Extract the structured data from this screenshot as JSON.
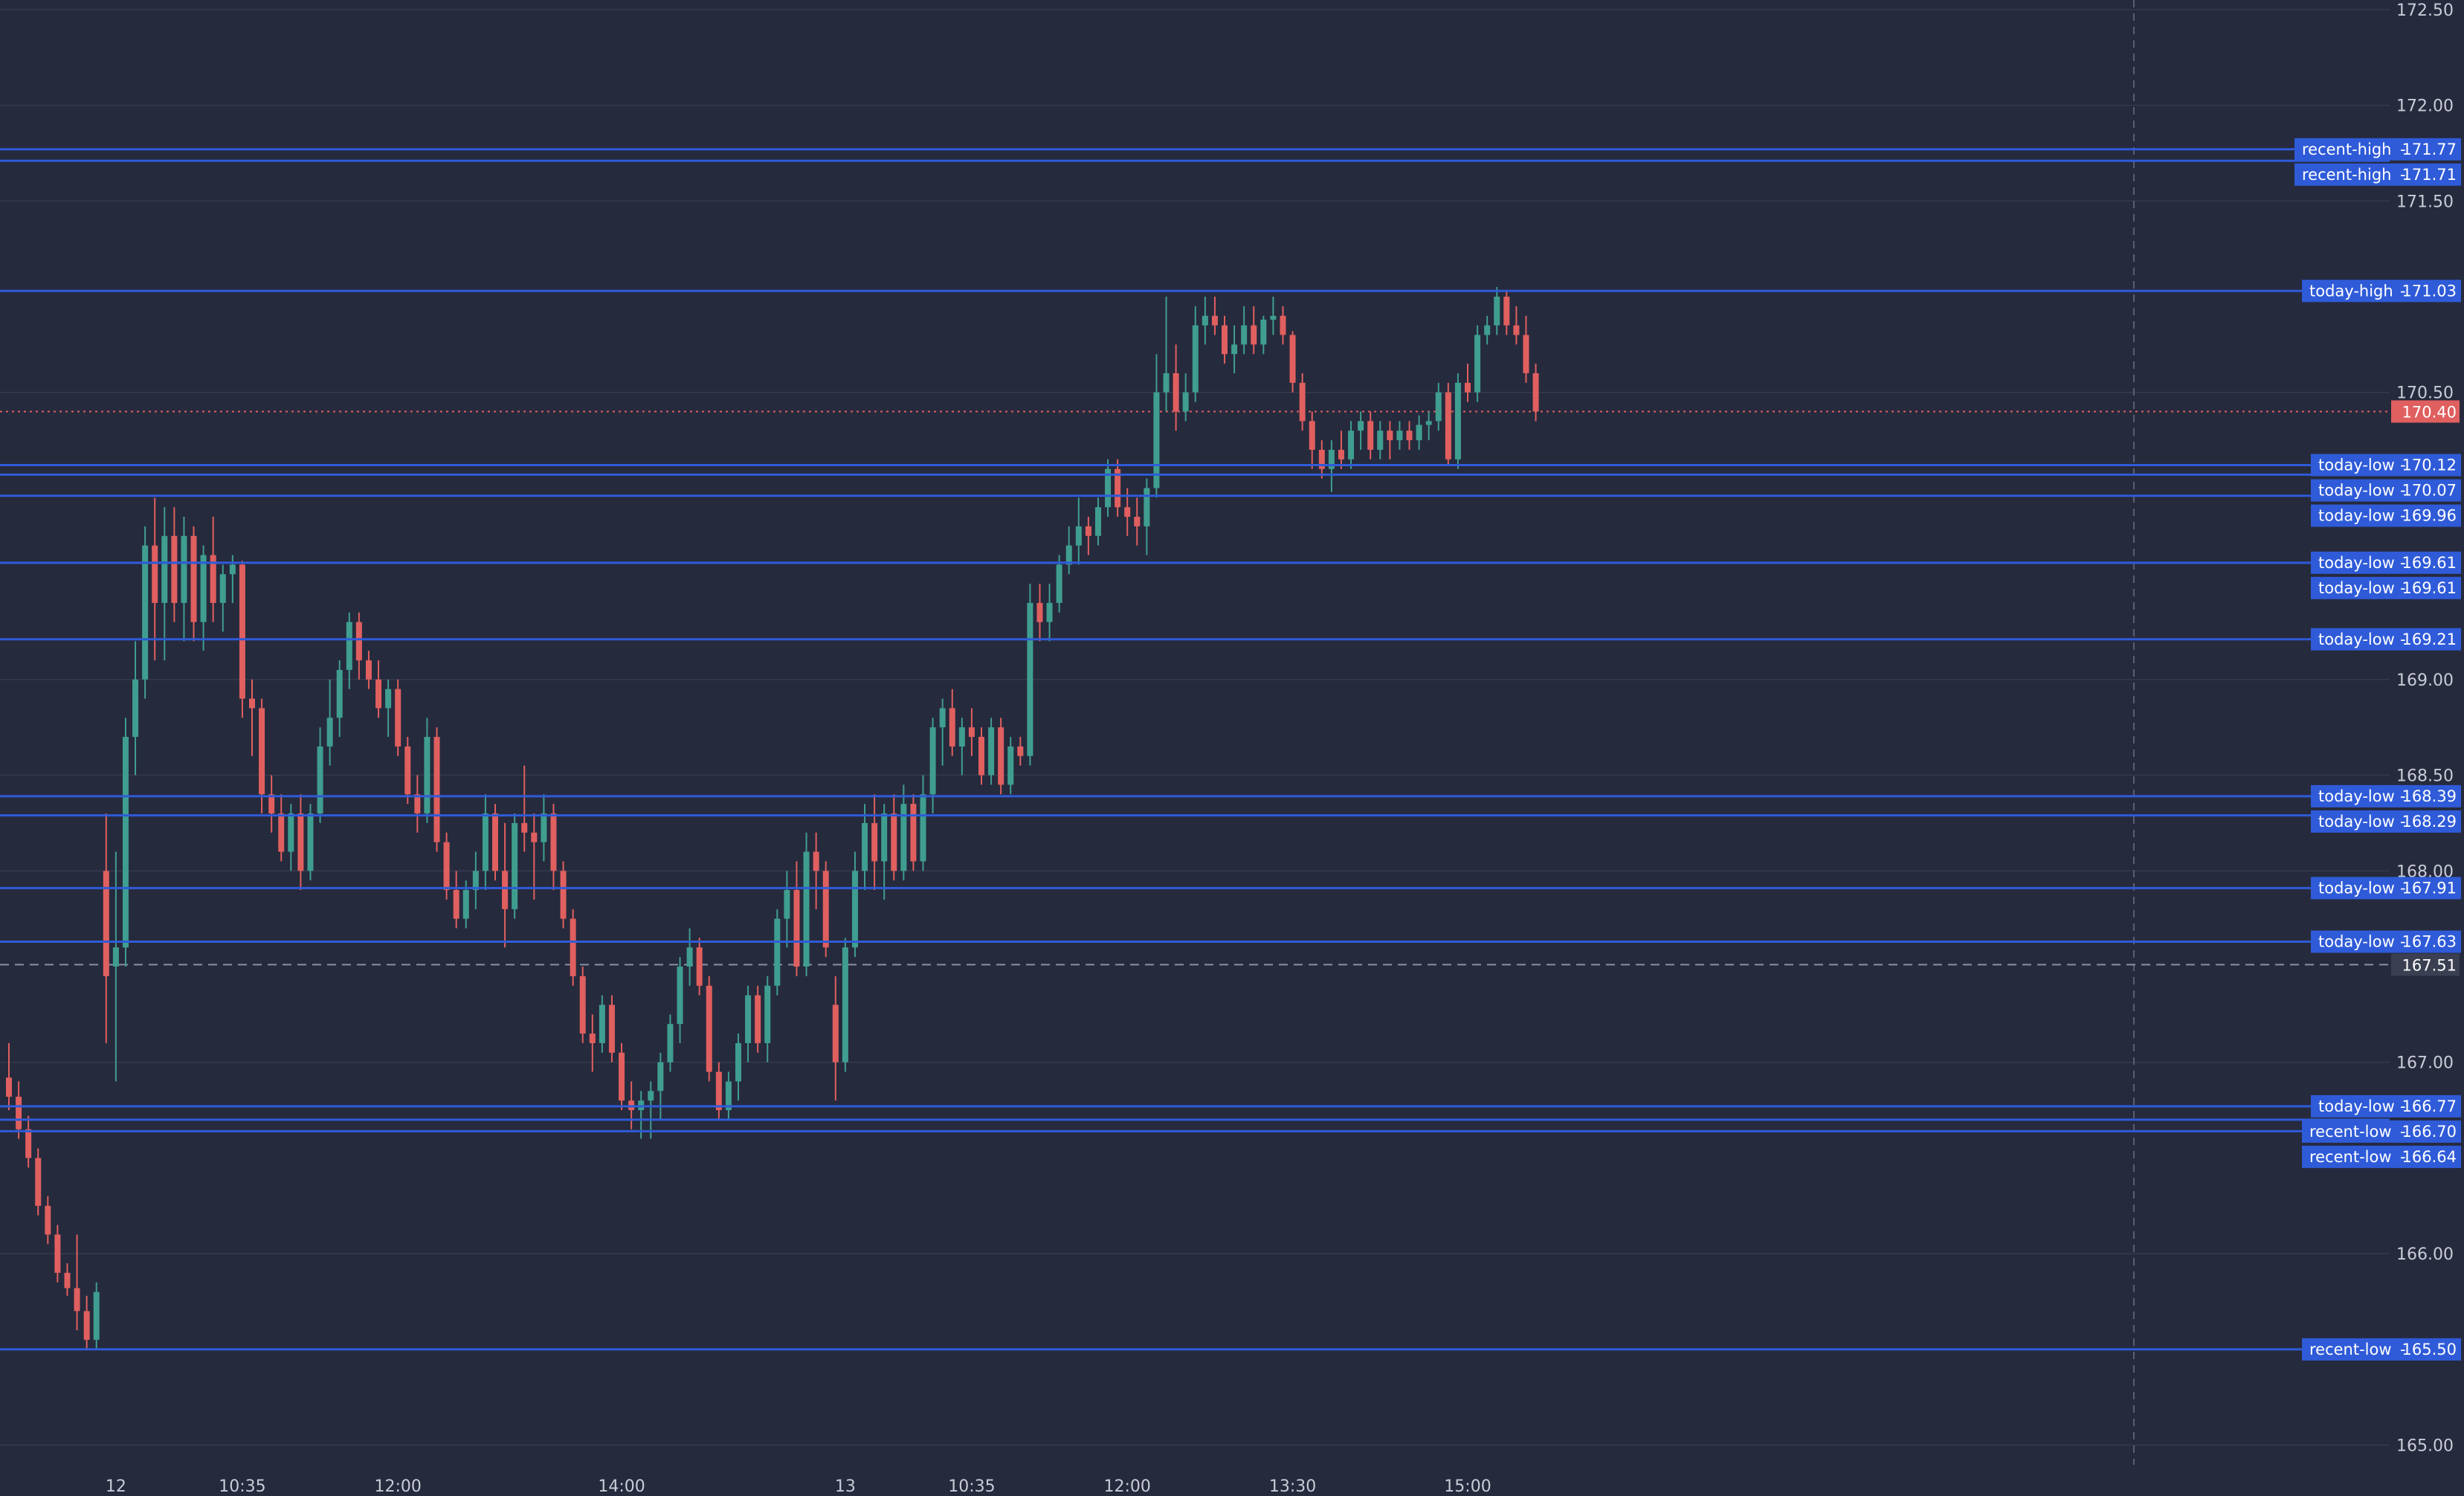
{
  "colors": {
    "background": "#262a3d",
    "grid": "#353a4e",
    "axis_text": "#c9ccd6",
    "up_candle": "#3f9e8f",
    "down_candle": "#e05f5f",
    "level_line": "#2f5bd8",
    "level_label_bg": "#2f5bd8",
    "level_label_text": "#ffffff",
    "current_price_bg": "#e05f5f",
    "reference_price_bg": "#3a3f52"
  },
  "chart_data": {
    "type": "candlestick",
    "grid": true,
    "y_axis_side": "right",
    "ylim": [
      164.8,
      172.55
    ],
    "y_ticks": [
      {
        "label": "172.50",
        "value": 172.5
      },
      {
        "label": "172.00",
        "value": 172.0
      },
      {
        "label": "171.50",
        "value": 171.5
      },
      {
        "label": "170.50",
        "value": 170.5
      },
      {
        "label": "169.00",
        "value": 169.0
      },
      {
        "label": "168.50",
        "value": 168.5
      },
      {
        "label": "168.00",
        "value": 168.0
      },
      {
        "label": "167.00",
        "value": 167.0
      },
      {
        "label": "166.00",
        "value": 166.0
      },
      {
        "label": "165.00",
        "value": 165.0
      }
    ],
    "x_ticks": [
      {
        "label": "12",
        "index": 11
      },
      {
        "label": "10:35",
        "index": 24
      },
      {
        "label": "12:00",
        "index": 40
      },
      {
        "label": "14:00",
        "index": 63
      },
      {
        "label": "13",
        "index": 86
      },
      {
        "label": "10:35",
        "index": 99
      },
      {
        "label": "12:00",
        "index": 115
      },
      {
        "label": "13:30",
        "index": 132
      },
      {
        "label": "15:00",
        "index": 150
      }
    ],
    "current_price": {
      "label": "170.40",
      "value": 170.4
    },
    "reference_price": {
      "label": "167.51",
      "value": 167.51
    },
    "levels": [
      {
        "name": "recent-high",
        "value": 171.77,
        "label": "171.77"
      },
      {
        "name": "recent-high",
        "value": 171.71,
        "label": "171.71"
      },
      {
        "name": "today-high",
        "value": 171.03,
        "label": "171.03"
      },
      {
        "name": "today-low",
        "value": 170.12,
        "label": "170.12"
      },
      {
        "name": "today-low",
        "value": 170.07,
        "label": "170.07"
      },
      {
        "name": "today-low",
        "value": 169.96,
        "label": "169.96"
      },
      {
        "name": "today-low",
        "value": 169.61,
        "label": "169.61"
      },
      {
        "name": "today-low",
        "value": 169.61,
        "label": "169.61"
      },
      {
        "name": "today-low",
        "value": 169.21,
        "label": "169.21"
      },
      {
        "name": "today-low",
        "value": 168.39,
        "label": "168.39"
      },
      {
        "name": "today-low",
        "value": 168.29,
        "label": "168.29"
      },
      {
        "name": "today-low",
        "value": 167.91,
        "label": "167.91"
      },
      {
        "name": "today-low",
        "value": 167.63,
        "label": "167.63"
      },
      {
        "name": "today-low",
        "value": 166.77,
        "label": "166.77"
      },
      {
        "name": "recent-low",
        "value": 166.7,
        "label": "166.70"
      },
      {
        "name": "recent-low",
        "value": 166.64,
        "label": "166.64"
      },
      {
        "name": "recent-low",
        "value": 165.5,
        "label": "165.50"
      }
    ],
    "candles": [
      {
        "o": 166.92,
        "h": 167.1,
        "l": 166.75,
        "c": 166.82
      },
      {
        "o": 166.82,
        "h": 166.9,
        "l": 166.6,
        "c": 166.65
      },
      {
        "o": 166.65,
        "h": 166.72,
        "l": 166.45,
        "c": 166.5
      },
      {
        "o": 166.5,
        "h": 166.55,
        "l": 166.2,
        "c": 166.25
      },
      {
        "o": 166.25,
        "h": 166.3,
        "l": 166.05,
        "c": 166.1
      },
      {
        "o": 166.1,
        "h": 166.15,
        "l": 165.85,
        "c": 165.9
      },
      {
        "o": 165.9,
        "h": 165.95,
        "l": 165.78,
        "c": 165.82
      },
      {
        "o": 165.82,
        "h": 166.1,
        "l": 165.6,
        "c": 165.7
      },
      {
        "o": 165.7,
        "h": 165.78,
        "l": 165.5,
        "c": 165.55
      },
      {
        "o": 165.55,
        "h": 165.85,
        "l": 165.5,
        "c": 165.8
      },
      {
        "o": 168.0,
        "h": 168.3,
        "l": 167.1,
        "c": 167.45
      },
      {
        "o": 167.5,
        "h": 168.1,
        "l": 166.9,
        "c": 167.6
      },
      {
        "o": 167.6,
        "h": 168.8,
        "l": 167.5,
        "c": 168.7
      },
      {
        "o": 168.7,
        "h": 169.2,
        "l": 168.5,
        "c": 169.0
      },
      {
        "o": 169.0,
        "h": 169.8,
        "l": 168.9,
        "c": 169.7
      },
      {
        "o": 169.7,
        "h": 169.95,
        "l": 169.1,
        "c": 169.4
      },
      {
        "o": 169.4,
        "h": 169.9,
        "l": 169.1,
        "c": 169.75
      },
      {
        "o": 169.75,
        "h": 169.9,
        "l": 169.3,
        "c": 169.4
      },
      {
        "o": 169.4,
        "h": 169.85,
        "l": 169.2,
        "c": 169.75
      },
      {
        "o": 169.75,
        "h": 169.8,
        "l": 169.2,
        "c": 169.3
      },
      {
        "o": 169.3,
        "h": 169.7,
        "l": 169.15,
        "c": 169.65
      },
      {
        "o": 169.65,
        "h": 169.85,
        "l": 169.3,
        "c": 169.4
      },
      {
        "o": 169.4,
        "h": 169.6,
        "l": 169.25,
        "c": 169.55
      },
      {
        "o": 169.55,
        "h": 169.65,
        "l": 169.4,
        "c": 169.6
      },
      {
        "o": 169.6,
        "h": 169.62,
        "l": 168.8,
        "c": 168.9
      },
      {
        "o": 168.9,
        "h": 169.0,
        "l": 168.6,
        "c": 168.85
      },
      {
        "o": 168.85,
        "h": 168.9,
        "l": 168.3,
        "c": 168.4
      },
      {
        "o": 168.4,
        "h": 168.5,
        "l": 168.2,
        "c": 168.3
      },
      {
        "o": 168.3,
        "h": 168.4,
        "l": 168.05,
        "c": 168.1
      },
      {
        "o": 168.1,
        "h": 168.35,
        "l": 168.0,
        "c": 168.3
      },
      {
        "o": 168.3,
        "h": 168.4,
        "l": 167.9,
        "c": 168.0
      },
      {
        "o": 168.0,
        "h": 168.35,
        "l": 167.95,
        "c": 168.3
      },
      {
        "o": 168.3,
        "h": 168.75,
        "l": 168.25,
        "c": 168.65
      },
      {
        "o": 168.65,
        "h": 169.0,
        "l": 168.55,
        "c": 168.8
      },
      {
        "o": 168.8,
        "h": 169.1,
        "l": 168.7,
        "c": 169.05
      },
      {
        "o": 169.05,
        "h": 169.35,
        "l": 168.95,
        "c": 169.3
      },
      {
        "o": 169.3,
        "h": 169.35,
        "l": 169.0,
        "c": 169.1
      },
      {
        "o": 169.1,
        "h": 169.15,
        "l": 168.95,
        "c": 169.0
      },
      {
        "o": 169.0,
        "h": 169.1,
        "l": 168.8,
        "c": 168.85
      },
      {
        "o": 168.85,
        "h": 169.0,
        "l": 168.7,
        "c": 168.95
      },
      {
        "o": 168.95,
        "h": 169.0,
        "l": 168.6,
        "c": 168.65
      },
      {
        "o": 168.65,
        "h": 168.7,
        "l": 168.35,
        "c": 168.4
      },
      {
        "o": 168.4,
        "h": 168.5,
        "l": 168.2,
        "c": 168.3
      },
      {
        "o": 168.3,
        "h": 168.8,
        "l": 168.25,
        "c": 168.7
      },
      {
        "o": 168.7,
        "h": 168.75,
        "l": 168.1,
        "c": 168.15
      },
      {
        "o": 168.15,
        "h": 168.2,
        "l": 167.85,
        "c": 167.9
      },
      {
        "o": 167.9,
        "h": 168.0,
        "l": 167.7,
        "c": 167.75
      },
      {
        "o": 167.75,
        "h": 167.95,
        "l": 167.7,
        "c": 167.9
      },
      {
        "o": 167.9,
        "h": 168.1,
        "l": 167.8,
        "c": 168.0
      },
      {
        "o": 168.0,
        "h": 168.4,
        "l": 167.9,
        "c": 168.3
      },
      {
        "o": 168.3,
        "h": 168.35,
        "l": 167.95,
        "c": 168.0
      },
      {
        "o": 168.0,
        "h": 168.25,
        "l": 167.6,
        "c": 167.8
      },
      {
        "o": 167.8,
        "h": 168.3,
        "l": 167.75,
        "c": 168.25
      },
      {
        "o": 168.25,
        "h": 168.55,
        "l": 168.1,
        "c": 168.2
      },
      {
        "o": 168.2,
        "h": 168.3,
        "l": 167.85,
        "c": 168.15
      },
      {
        "o": 168.15,
        "h": 168.4,
        "l": 168.05,
        "c": 168.3
      },
      {
        "o": 168.3,
        "h": 168.35,
        "l": 167.9,
        "c": 168.0
      },
      {
        "o": 168.0,
        "h": 168.05,
        "l": 167.7,
        "c": 167.75
      },
      {
        "o": 167.75,
        "h": 167.8,
        "l": 167.4,
        "c": 167.45
      },
      {
        "o": 167.45,
        "h": 167.5,
        "l": 167.1,
        "c": 167.15
      },
      {
        "o": 167.15,
        "h": 167.25,
        "l": 166.95,
        "c": 167.1
      },
      {
        "o": 167.1,
        "h": 167.35,
        "l": 167.05,
        "c": 167.3
      },
      {
        "o": 167.3,
        "h": 167.35,
        "l": 167.0,
        "c": 167.05
      },
      {
        "o": 167.05,
        "h": 167.1,
        "l": 166.75,
        "c": 166.8
      },
      {
        "o": 166.8,
        "h": 166.9,
        "l": 166.65,
        "c": 166.75
      },
      {
        "o": 166.75,
        "h": 166.85,
        "l": 166.6,
        "c": 166.8
      },
      {
        "o": 166.8,
        "h": 166.9,
        "l": 166.6,
        "c": 166.85
      },
      {
        "o": 166.85,
        "h": 167.05,
        "l": 166.7,
        "c": 167.0
      },
      {
        "o": 167.0,
        "h": 167.25,
        "l": 166.95,
        "c": 167.2
      },
      {
        "o": 167.2,
        "h": 167.55,
        "l": 167.1,
        "c": 167.5
      },
      {
        "o": 167.5,
        "h": 167.7,
        "l": 167.4,
        "c": 167.6
      },
      {
        "o": 167.6,
        "h": 167.65,
        "l": 167.35,
        "c": 167.4
      },
      {
        "o": 167.4,
        "h": 167.45,
        "l": 166.9,
        "c": 166.95
      },
      {
        "o": 166.95,
        "h": 167.0,
        "l": 166.7,
        "c": 166.75
      },
      {
        "o": 166.75,
        "h": 166.95,
        "l": 166.7,
        "c": 166.9
      },
      {
        "o": 166.9,
        "h": 167.15,
        "l": 166.8,
        "c": 167.1
      },
      {
        "o": 167.1,
        "h": 167.4,
        "l": 167.0,
        "c": 167.35
      },
      {
        "o": 167.35,
        "h": 167.4,
        "l": 167.05,
        "c": 167.1
      },
      {
        "o": 167.1,
        "h": 167.45,
        "l": 167.0,
        "c": 167.4
      },
      {
        "o": 167.4,
        "h": 167.8,
        "l": 167.35,
        "c": 167.75
      },
      {
        "o": 167.75,
        "h": 168.0,
        "l": 167.6,
        "c": 167.9
      },
      {
        "o": 167.9,
        "h": 168.05,
        "l": 167.45,
        "c": 167.5
      },
      {
        "o": 167.5,
        "h": 168.2,
        "l": 167.45,
        "c": 168.1
      },
      {
        "o": 168.1,
        "h": 168.2,
        "l": 167.8,
        "c": 168.0
      },
      {
        "o": 168.0,
        "h": 168.05,
        "l": 167.55,
        "c": 167.6
      },
      {
        "o": 167.3,
        "h": 167.45,
        "l": 166.8,
        "c": 167.0
      },
      {
        "o": 167.0,
        "h": 167.65,
        "l": 166.95,
        "c": 167.6
      },
      {
        "o": 167.6,
        "h": 168.1,
        "l": 167.55,
        "c": 168.0
      },
      {
        "o": 168.0,
        "h": 168.35,
        "l": 167.9,
        "c": 168.25
      },
      {
        "o": 168.25,
        "h": 168.4,
        "l": 167.9,
        "c": 168.05
      },
      {
        "o": 168.05,
        "h": 168.35,
        "l": 167.85,
        "c": 168.3
      },
      {
        "o": 168.3,
        "h": 168.4,
        "l": 167.95,
        "c": 168.0
      },
      {
        "o": 168.0,
        "h": 168.45,
        "l": 167.95,
        "c": 168.35
      },
      {
        "o": 168.35,
        "h": 168.4,
        "l": 168.0,
        "c": 168.05
      },
      {
        "o": 168.05,
        "h": 168.5,
        "l": 168.0,
        "c": 168.4
      },
      {
        "o": 168.4,
        "h": 168.8,
        "l": 168.3,
        "c": 168.75
      },
      {
        "o": 168.75,
        "h": 168.9,
        "l": 168.55,
        "c": 168.85
      },
      {
        "o": 168.85,
        "h": 168.95,
        "l": 168.6,
        "c": 168.65
      },
      {
        "o": 168.65,
        "h": 168.8,
        "l": 168.5,
        "c": 168.75
      },
      {
        "o": 168.75,
        "h": 168.85,
        "l": 168.6,
        "c": 168.7
      },
      {
        "o": 168.7,
        "h": 168.75,
        "l": 168.45,
        "c": 168.5
      },
      {
        "o": 168.5,
        "h": 168.8,
        "l": 168.45,
        "c": 168.75
      },
      {
        "o": 168.75,
        "h": 168.8,
        "l": 168.4,
        "c": 168.45
      },
      {
        "o": 168.45,
        "h": 168.7,
        "l": 168.4,
        "c": 168.65
      },
      {
        "o": 168.65,
        "h": 168.7,
        "l": 168.55,
        "c": 168.6
      },
      {
        "o": 168.6,
        "h": 169.5,
        "l": 168.55,
        "c": 169.4
      },
      {
        "o": 169.4,
        "h": 169.5,
        "l": 169.2,
        "c": 169.3
      },
      {
        "o": 169.3,
        "h": 169.5,
        "l": 169.2,
        "c": 169.4
      },
      {
        "o": 169.4,
        "h": 169.65,
        "l": 169.35,
        "c": 169.6
      },
      {
        "o": 169.6,
        "h": 169.8,
        "l": 169.55,
        "c": 169.7
      },
      {
        "o": 169.7,
        "h": 169.95,
        "l": 169.6,
        "c": 169.8
      },
      {
        "o": 169.8,
        "h": 169.85,
        "l": 169.65,
        "c": 169.75
      },
      {
        "o": 169.75,
        "h": 169.95,
        "l": 169.7,
        "c": 169.9
      },
      {
        "o": 169.9,
        "h": 170.15,
        "l": 169.85,
        "c": 170.1
      },
      {
        "o": 170.1,
        "h": 170.15,
        "l": 169.85,
        "c": 169.9
      },
      {
        "o": 169.9,
        "h": 170.0,
        "l": 169.75,
        "c": 169.85
      },
      {
        "o": 169.85,
        "h": 169.95,
        "l": 169.7,
        "c": 169.8
      },
      {
        "o": 169.8,
        "h": 170.05,
        "l": 169.65,
        "c": 170.0
      },
      {
        "o": 170.0,
        "h": 170.7,
        "l": 169.95,
        "c": 170.5
      },
      {
        "o": 170.5,
        "h": 171.0,
        "l": 170.4,
        "c": 170.6
      },
      {
        "o": 170.6,
        "h": 170.75,
        "l": 170.3,
        "c": 170.4
      },
      {
        "o": 170.4,
        "h": 170.6,
        "l": 170.35,
        "c": 170.5
      },
      {
        "o": 170.5,
        "h": 170.95,
        "l": 170.45,
        "c": 170.85
      },
      {
        "o": 170.85,
        "h": 171.0,
        "l": 170.75,
        "c": 170.9
      },
      {
        "o": 170.9,
        "h": 171.0,
        "l": 170.8,
        "c": 170.85
      },
      {
        "o": 170.85,
        "h": 170.9,
        "l": 170.65,
        "c": 170.7
      },
      {
        "o": 170.7,
        "h": 170.85,
        "l": 170.6,
        "c": 170.75
      },
      {
        "o": 170.75,
        "h": 170.95,
        "l": 170.7,
        "c": 170.85
      },
      {
        "o": 170.85,
        "h": 170.95,
        "l": 170.7,
        "c": 170.75
      },
      {
        "o": 170.75,
        "h": 170.9,
        "l": 170.7,
        "c": 170.88
      },
      {
        "o": 170.88,
        "h": 171.0,
        "l": 170.8,
        "c": 170.9
      },
      {
        "o": 170.9,
        "h": 170.95,
        "l": 170.75,
        "c": 170.8
      },
      {
        "o": 170.8,
        "h": 170.82,
        "l": 170.5,
        "c": 170.55
      },
      {
        "o": 170.55,
        "h": 170.6,
        "l": 170.3,
        "c": 170.35
      },
      {
        "o": 170.35,
        "h": 170.4,
        "l": 170.1,
        "c": 170.2
      },
      {
        "o": 170.2,
        "h": 170.25,
        "l": 170.05,
        "c": 170.1
      },
      {
        "o": 170.1,
        "h": 170.25,
        "l": 169.98,
        "c": 170.2
      },
      {
        "o": 170.2,
        "h": 170.3,
        "l": 170.1,
        "c": 170.15
      },
      {
        "o": 170.15,
        "h": 170.35,
        "l": 170.1,
        "c": 170.3
      },
      {
        "o": 170.3,
        "h": 170.4,
        "l": 170.2,
        "c": 170.35
      },
      {
        "o": 170.35,
        "h": 170.4,
        "l": 170.15,
        "c": 170.2
      },
      {
        "o": 170.2,
        "h": 170.35,
        "l": 170.15,
        "c": 170.3
      },
      {
        "o": 170.3,
        "h": 170.35,
        "l": 170.15,
        "c": 170.25
      },
      {
        "o": 170.25,
        "h": 170.35,
        "l": 170.2,
        "c": 170.3
      },
      {
        "o": 170.3,
        "h": 170.35,
        "l": 170.2,
        "c": 170.25
      },
      {
        "o": 170.25,
        "h": 170.38,
        "l": 170.2,
        "c": 170.33
      },
      {
        "o": 170.33,
        "h": 170.4,
        "l": 170.25,
        "c": 170.35
      },
      {
        "o": 170.35,
        "h": 170.55,
        "l": 170.3,
        "c": 170.5
      },
      {
        "o": 170.5,
        "h": 170.55,
        "l": 170.12,
        "c": 170.15
      },
      {
        "o": 170.15,
        "h": 170.6,
        "l": 170.1,
        "c": 170.55
      },
      {
        "o": 170.55,
        "h": 170.65,
        "l": 170.45,
        "c": 170.5
      },
      {
        "o": 170.5,
        "h": 170.85,
        "l": 170.45,
        "c": 170.8
      },
      {
        "o": 170.8,
        "h": 170.9,
        "l": 170.75,
        "c": 170.85
      },
      {
        "o": 170.85,
        "h": 171.05,
        "l": 170.8,
        "c": 171.0
      },
      {
        "o": 171.0,
        "h": 171.03,
        "l": 170.8,
        "c": 170.85
      },
      {
        "o": 170.85,
        "h": 170.95,
        "l": 170.75,
        "c": 170.8
      },
      {
        "o": 170.8,
        "h": 170.9,
        "l": 170.55,
        "c": 170.6
      },
      {
        "o": 170.6,
        "h": 170.65,
        "l": 170.35,
        "c": 170.4
      }
    ]
  }
}
